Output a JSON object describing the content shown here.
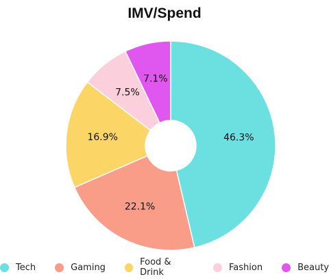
{
  "chart_data": {
    "type": "pie",
    "title": "IMV/Spend",
    "donut": true,
    "legend_position": "bottom",
    "categories": [
      "Tech",
      "Gaming",
      "Food & Drink",
      "Fashion",
      "Beauty"
    ],
    "values": [
      46.3,
      22.1,
      16.9,
      7.5,
      7.1
    ],
    "value_labels": [
      "46.3%",
      "22.1%",
      "16.9%",
      "7.5%",
      "7.1%"
    ],
    "colors": [
      "#6ce0e0",
      "#f99d89",
      "#fcd567",
      "#fccfdc",
      "#df57ef"
    ]
  }
}
